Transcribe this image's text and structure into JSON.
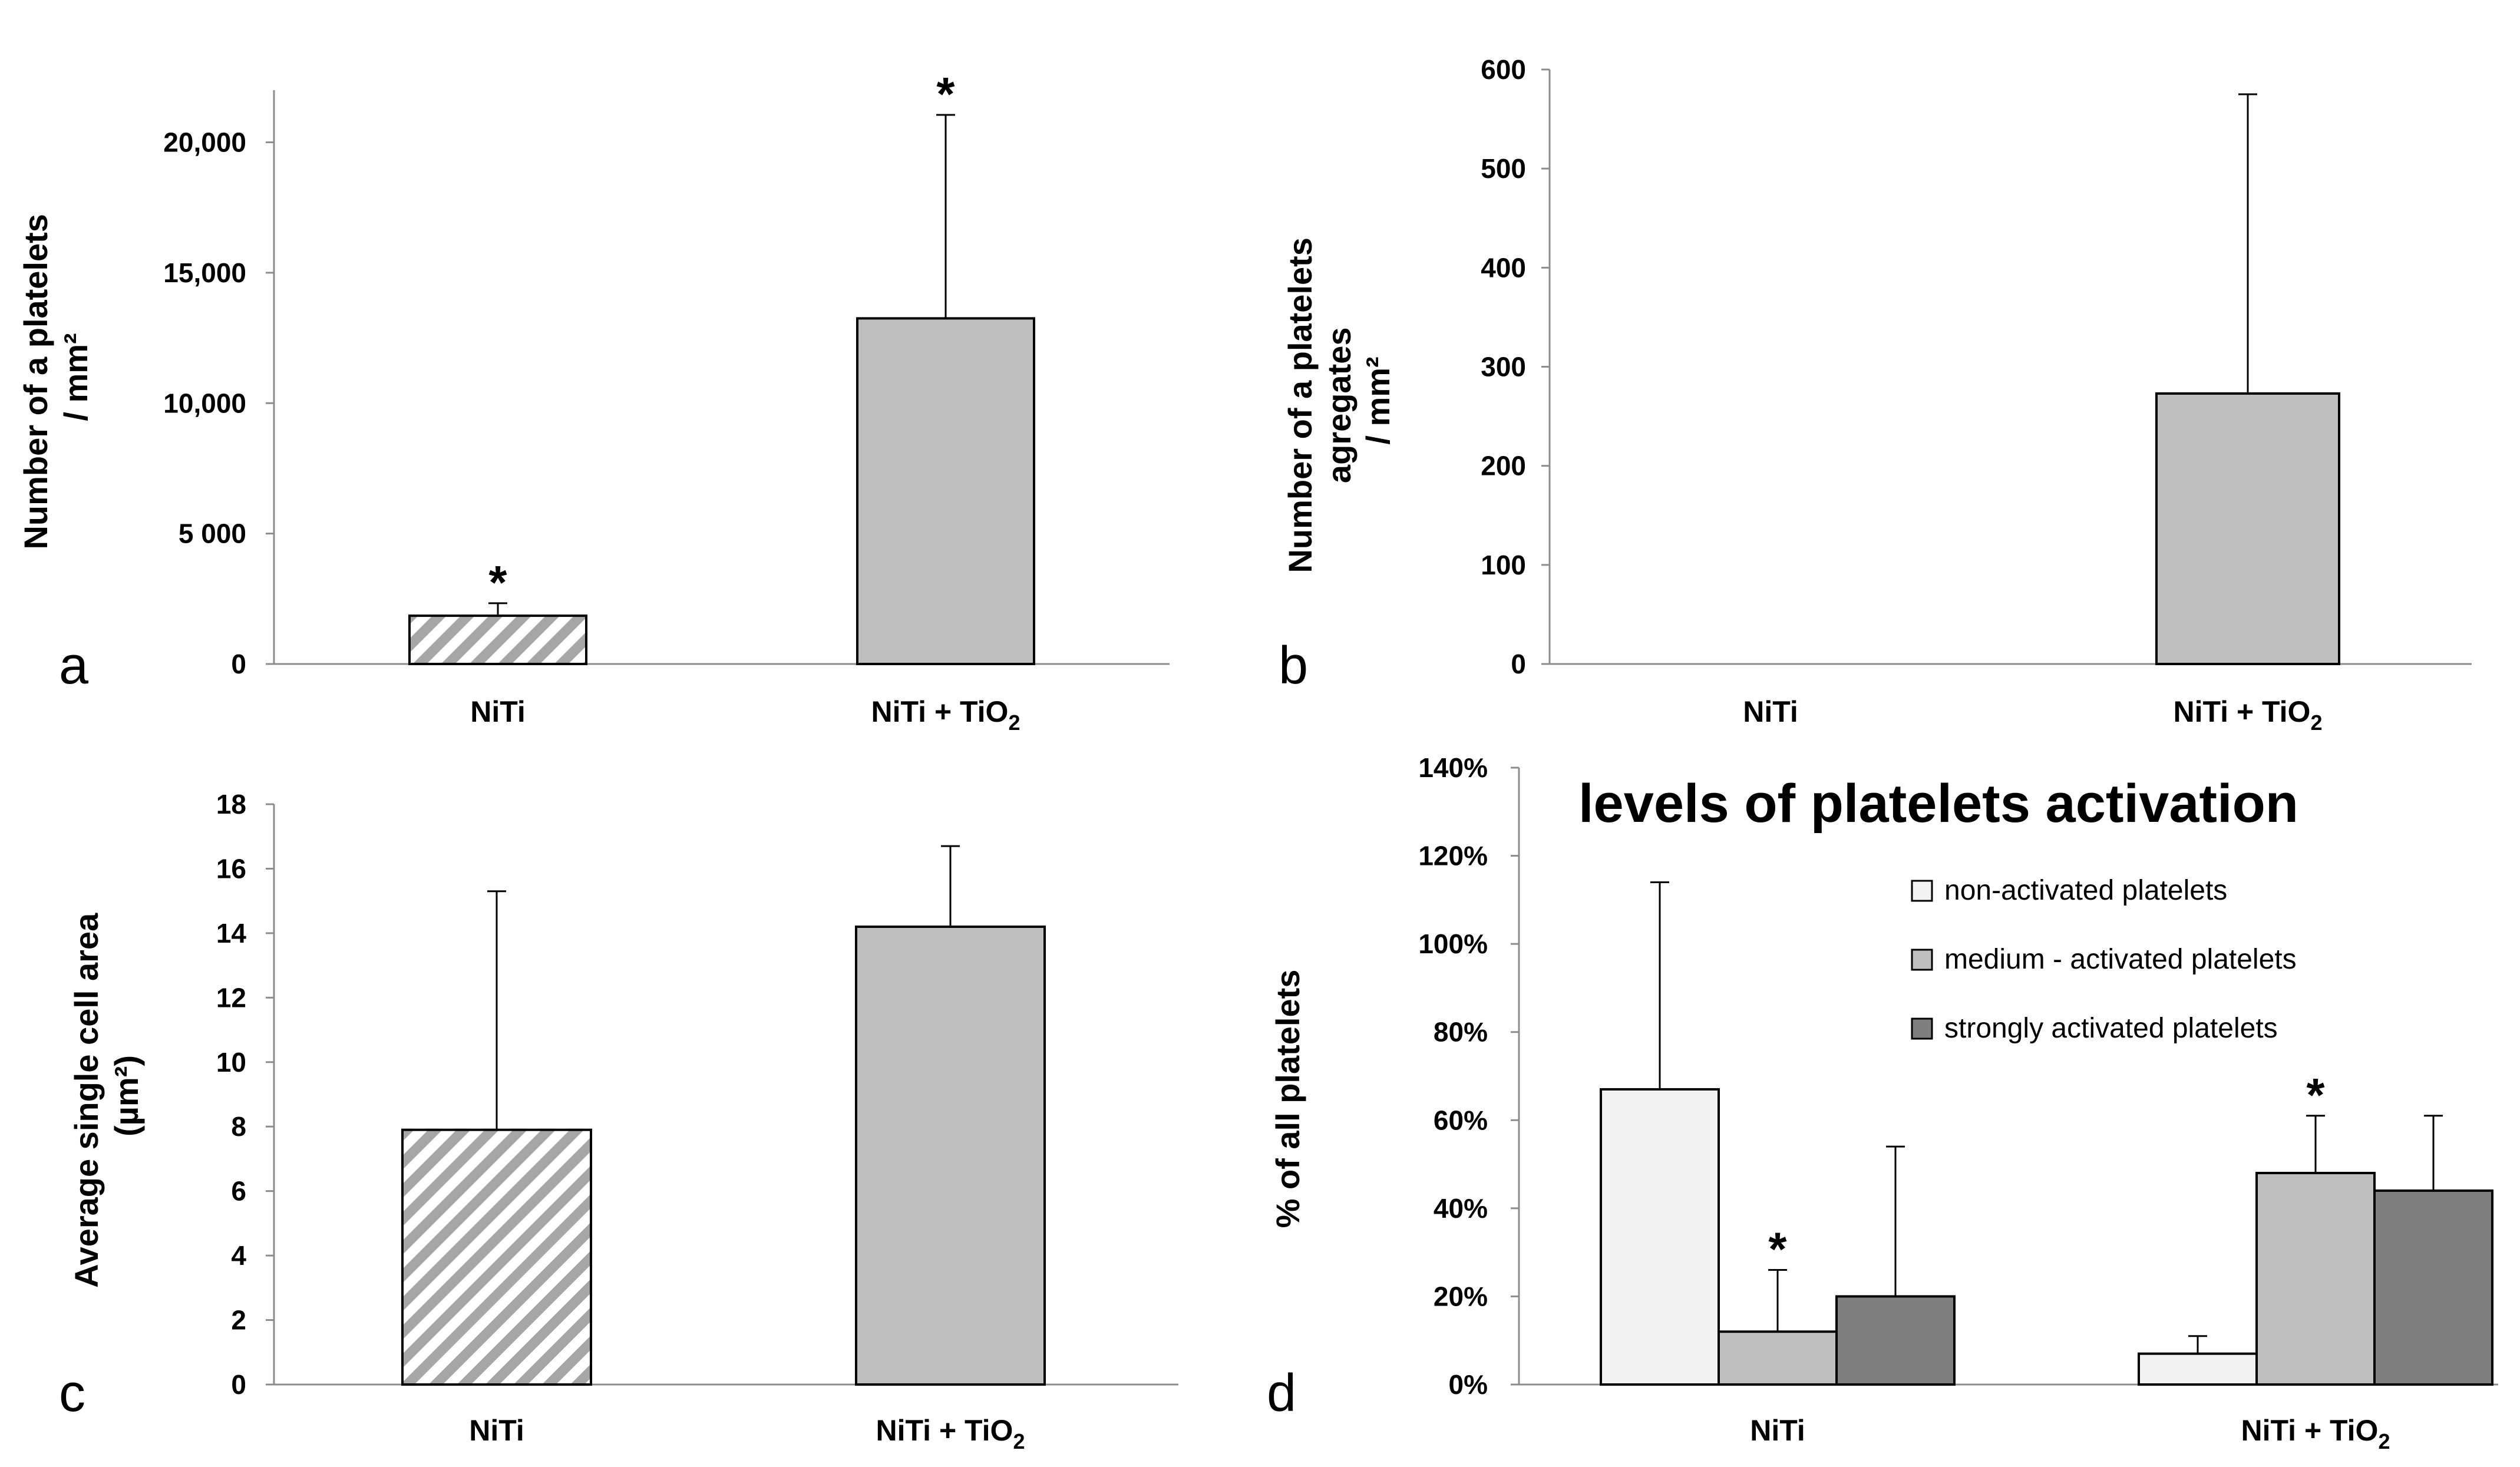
{
  "chart_data": [
    {
      "panel": "a",
      "type": "bar",
      "categories": [
        "NiTi",
        "NiTi + TiO2"
      ],
      "values": [
        1850,
        13250
      ],
      "errors": [
        480,
        7800
      ],
      "significance": [
        "*",
        "*"
      ],
      "ylabel": [
        "Number of a platelets",
        "/ mm²"
      ],
      "ylim": [
        0,
        20000
      ],
      "yticks": [
        0,
        5000,
        10000,
        15000,
        20000
      ],
      "ytick_labels": [
        "0",
        "5 000",
        "10,000",
        "15,000",
        "20,000"
      ],
      "ymax_axis": 22000,
      "bar_fills": [
        "hatch",
        "#bfbfbf"
      ],
      "grid": false
    },
    {
      "panel": "b",
      "type": "bar",
      "categories": [
        "NiTi",
        "NiTi + TiO2"
      ],
      "values": [
        0,
        273
      ],
      "errors": [
        0,
        302
      ],
      "significance": [
        "",
        ""
      ],
      "ylabel": [
        "Number of a platelets",
        "agregates",
        "/ mm²"
      ],
      "ylim": [
        0,
        600
      ],
      "yticks": [
        0,
        100,
        200,
        300,
        400,
        500,
        600
      ],
      "ytick_labels": [
        "0",
        "100",
        "200",
        "300",
        "400",
        "500",
        "600"
      ],
      "ymax_axis": 600,
      "bar_fills": [
        "#bfbfbf",
        "#bfbfbf"
      ],
      "grid": false
    },
    {
      "panel": "c",
      "type": "bar",
      "categories": [
        "NiTi",
        "NiTi + TiO2"
      ],
      "values": [
        7.9,
        14.2
      ],
      "errors": [
        7.4,
        2.5
      ],
      "significance": [
        "",
        ""
      ],
      "ylabel": [
        "Average  single cell area",
        "(µm²)"
      ],
      "ylim": [
        0,
        18
      ],
      "yticks": [
        0,
        2,
        4,
        6,
        8,
        10,
        12,
        14,
        16,
        18
      ],
      "ytick_labels": [
        "0",
        "2",
        "4",
        "6",
        "8",
        "10",
        "12",
        "14",
        "16",
        "18"
      ],
      "ymax_axis": 18,
      "bar_fills": [
        "hatch",
        "#bfbfbf"
      ],
      "grid": false
    },
    {
      "panel": "d",
      "type": "bar",
      "title": "levels of platelets activation",
      "categories": [
        "NiTi",
        "NiTi + TiO2"
      ],
      "series": [
        {
          "name": "non-activated platelets",
          "color": "#f2f2f2",
          "values": [
            67,
            7
          ],
          "errors": [
            47,
            4
          ],
          "significance": [
            "",
            ""
          ]
        },
        {
          "name": "medium - activated platelets",
          "color": "#bfbfbf",
          "values": [
            12,
            48
          ],
          "errors": [
            14,
            13
          ],
          "significance": [
            "*",
            "*"
          ]
        },
        {
          "name": "strongly activated platelets",
          "color": "#7f7f7f",
          "values": [
            20,
            44
          ],
          "errors": [
            34,
            17
          ],
          "significance": [
            "",
            ""
          ]
        }
      ],
      "ylabel": [
        "% of all platelets"
      ],
      "ylim": [
        0,
        140
      ],
      "yticks": [
        0,
        20,
        40,
        60,
        80,
        100,
        120,
        140
      ],
      "ytick_labels": [
        "0%",
        "20%",
        "40%",
        "60%",
        "80%",
        "100%",
        "120%",
        "140%"
      ],
      "ymax_axis": 140,
      "legend_position": "top-right",
      "grid": false
    }
  ]
}
